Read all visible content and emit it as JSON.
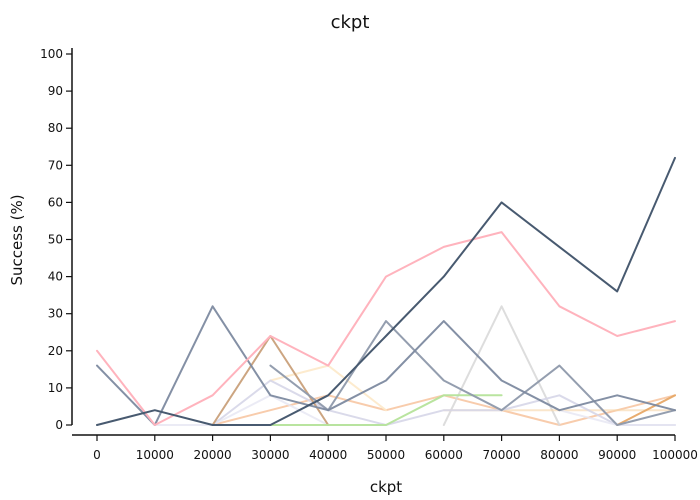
{
  "chart_data": {
    "type": "line",
    "title": "ckpt",
    "xlabel": "ckpt",
    "ylabel": "Success (%)",
    "x": [
      0,
      10000,
      20000,
      30000,
      40000,
      50000,
      60000,
      70000,
      80000,
      90000,
      100000
    ],
    "xticks": [
      "0",
      "10000",
      "20000",
      "30000",
      "40000",
      "50000",
      "60000",
      "70000",
      "80000",
      "90000",
      "100000"
    ],
    "yticks": [
      "0",
      "10",
      "20",
      "30",
      "40",
      "50",
      "60",
      "70",
      "80",
      "90",
      "100"
    ],
    "xlim": [
      0,
      100000
    ],
    "ylim": [
      0,
      100
    ],
    "grid": false,
    "legend": "none",
    "series": [
      {
        "color": "#f7c6a3",
        "opacity": 0.9,
        "values": [
          null,
          null,
          0,
          4,
          8,
          4,
          8,
          4,
          0,
          4,
          8
        ]
      },
      {
        "color": "#fde9c9",
        "opacity": 0.9,
        "values": [
          null,
          null,
          null,
          12,
          16,
          4,
          null,
          null,
          null,
          null,
          null
        ]
      },
      {
        "color": "#d9d9d9",
        "opacity": 0.9,
        "values": [
          null,
          null,
          null,
          null,
          null,
          null,
          0,
          32,
          0,
          null,
          null
        ]
      },
      {
        "color": "#f7d6a8",
        "opacity": 0.6,
        "values": [
          null,
          null,
          null,
          null,
          null,
          null,
          4,
          4,
          4,
          4,
          4
        ]
      },
      {
        "color": "#d6d6e8",
        "opacity": 0.9,
        "values": [
          null,
          null,
          0,
          12,
          4,
          0,
          4,
          4,
          8,
          0,
          0
        ]
      },
      {
        "color": "#e6e6f2",
        "opacity": 0.8,
        "values": [
          null,
          0,
          0,
          8,
          0,
          0,
          null,
          null,
          4,
          0,
          0
        ]
      },
      {
        "color": "#c9a07a",
        "opacity": 0.95,
        "values": [
          null,
          null,
          0,
          24,
          0,
          null,
          null,
          null,
          null,
          null,
          null
        ]
      },
      {
        "color": "#b5e39a",
        "opacity": 0.95,
        "values": [
          null,
          null,
          null,
          0,
          0,
          0,
          8,
          8,
          null,
          null,
          null
        ]
      },
      {
        "color": "#e7a867",
        "opacity": 0.95,
        "values": [
          null,
          null,
          null,
          null,
          null,
          null,
          null,
          null,
          null,
          0,
          8
        ]
      },
      {
        "color": "#8e99ab",
        "opacity": 0.95,
        "values": [
          null,
          null,
          null,
          16,
          4,
          28,
          12,
          4,
          16,
          0,
          4
        ]
      },
      {
        "color": "#7d8aa0",
        "opacity": 0.95,
        "values": [
          16,
          0,
          32,
          8,
          4,
          12,
          28,
          12,
          4,
          8,
          4
        ]
      },
      {
        "color": "#ffb3bd",
        "opacity": 1,
        "values": [
          20,
          0,
          8,
          24,
          16,
          40,
          48,
          52,
          32,
          24,
          28
        ]
      },
      {
        "color": "#485a70",
        "opacity": 1,
        "values": [
          0,
          4,
          0,
          0,
          8,
          24,
          40,
          60,
          48,
          36,
          72
        ]
      }
    ]
  }
}
